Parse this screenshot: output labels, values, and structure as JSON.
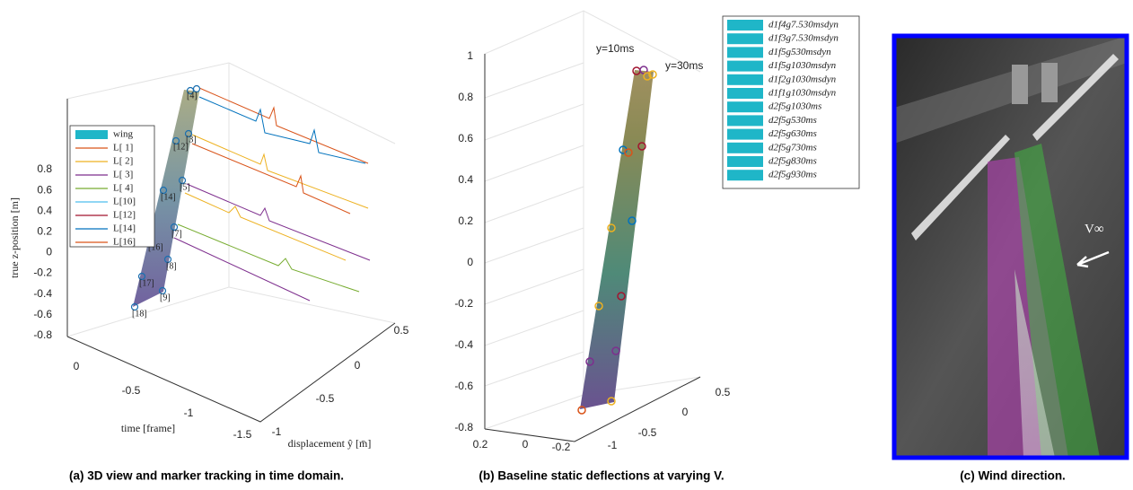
{
  "panel_a": {
    "z_label": "true z-position [m]",
    "x_label": "time [frame]",
    "y_label": "displacement ŷ [m̄]",
    "z_ticks": [
      0.8,
      0.6,
      0.4,
      0.2,
      0,
      -0.2,
      -0.4,
      -0.6,
      -0.8
    ],
    "x_ticks": [
      0,
      -0.5,
      -1,
      -1.5
    ],
    "y_ticks": [
      -1,
      -0.5,
      0,
      0.5
    ],
    "legend": [
      {
        "label": "wing",
        "color": "#1fb6c8"
      },
      {
        "label": "L[ 1]",
        "color": "#d95319"
      },
      {
        "label": "L[ 2]",
        "color": "#edb120"
      },
      {
        "label": "L[ 3]",
        "color": "#7e2f8e"
      },
      {
        "label": "L[ 4]",
        "color": "#77ac30"
      },
      {
        "label": "L[10]",
        "color": "#4dbeee"
      },
      {
        "label": "L[12]",
        "color": "#a2142f"
      },
      {
        "label": "L[14]",
        "color": "#0072bd"
      },
      {
        "label": "L[16]",
        "color": "#d95319"
      }
    ],
    "marker_labels": [
      "[18]",
      "[17]",
      "[16]",
      "[14]",
      "[12]",
      "[9]",
      "[8]",
      "[7]",
      "[5]",
      "[3]",
      "[4]"
    ],
    "caption": "(a) 3D view and marker tracking in time domain."
  },
  "panel_b": {
    "z_ticks": [
      1,
      0.8,
      0.6,
      0.4,
      0.2,
      0,
      -0.2,
      -0.4,
      -0.6,
      -0.8
    ],
    "x_ticks": [
      0.2,
      0,
      -0.2
    ],
    "y_ticks": [
      -1,
      -0.5,
      0,
      0.5
    ],
    "annotations": [
      "y=10ms",
      "y=30ms"
    ],
    "legend_color": "#1fb6c8",
    "legend": [
      "d1f4g7.530msdyn",
      "d1f3g7.530msdyn",
      "d1f5g530msdyn",
      "d1f5g1030msdyn",
      "d1f2g1030msdyn",
      "d1f1g1030msdyn",
      "d2f5g1030ms",
      "d2f5g530ms",
      "d2f5g630ms",
      "d2f5g730ms",
      "d2f5g830ms",
      "d2f5g930ms"
    ],
    "caption": "(b) Baseline static deflections at varying V."
  },
  "panel_c": {
    "label": "V∞",
    "caption": "(c) Wind direction."
  }
}
